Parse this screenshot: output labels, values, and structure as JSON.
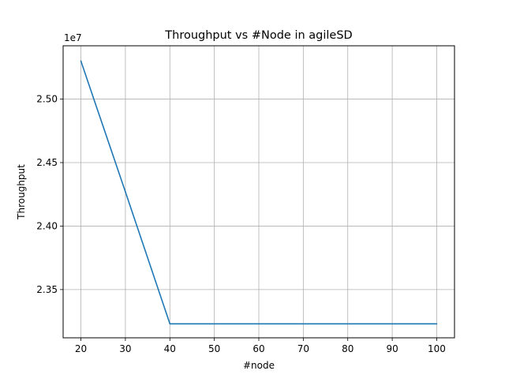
{
  "chart_data": {
    "type": "line",
    "title": "Throughput vs #Node in agileSD",
    "xlabel": "#node",
    "ylabel": "Throughput",
    "y_offset_label": "1e7",
    "grid": true,
    "xlim": [
      16,
      104
    ],
    "ylim": [
      23120000,
      25420000
    ],
    "x_ticks": [
      20,
      30,
      40,
      50,
      60,
      70,
      80,
      90,
      100
    ],
    "x_tick_labels": [
      "20",
      "30",
      "40",
      "50",
      "60",
      "70",
      "80",
      "90",
      "100"
    ],
    "y_ticks": [
      23500000,
      24000000,
      24500000,
      25000000
    ],
    "y_tick_labels": [
      "2.35",
      "2.40",
      "2.45",
      "2.50"
    ],
    "series": [
      {
        "color": "#1f77b4",
        "x": [
          20,
          30,
          40,
          50,
          60,
          70,
          80,
          90,
          100
        ],
        "y": [
          25300000,
          24270000,
          23230000,
          23230000,
          23230000,
          23230000,
          23230000,
          23230000,
          23230000
        ]
      }
    ]
  }
}
